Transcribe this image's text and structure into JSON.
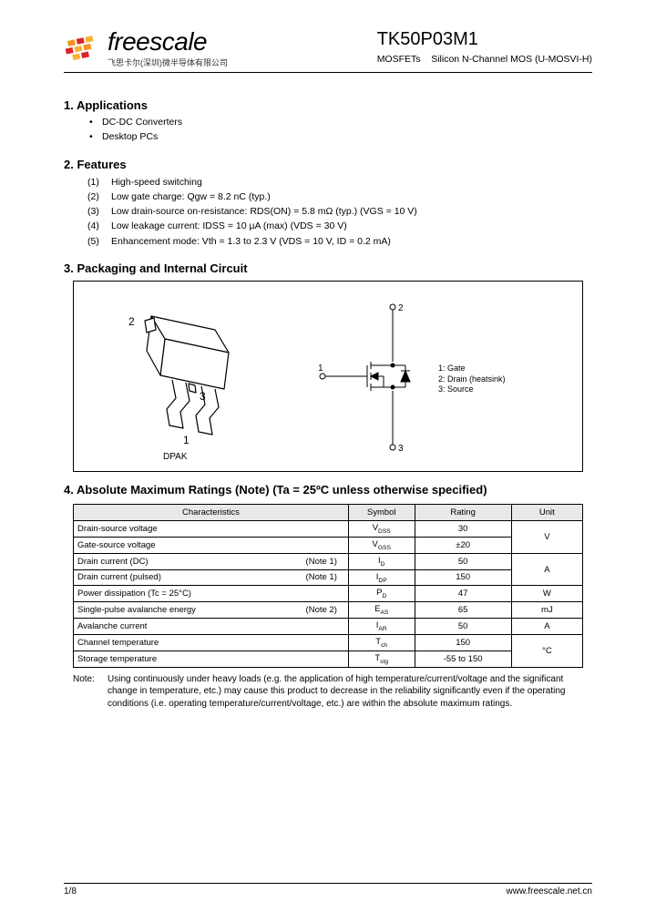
{
  "header": {
    "brand": "freescale",
    "brand_sub": "飞思卡尔(深圳)微半导体有限公司",
    "part_number": "TK50P03M1",
    "part_desc1": "MOSFETs",
    "part_desc2": "Silicon N-Channel MOS (U-MOSVI-H)",
    "logo_colors": {
      "orange": "#f7941e",
      "red": "#d9252a",
      "yellow": "#f9b233"
    }
  },
  "sections": {
    "s1_title": "1.  Applications",
    "s1_items": [
      "DC-DC Converters",
      "Desktop PCs"
    ],
    "s2_title": "2.  Features",
    "s2_items": [
      "High-speed switching",
      "Low gate charge: Qgw = 8.2 nC (typ.)",
      "Low drain-source on-resistance: RDS(ON) = 5.8 mΩ (typ.) (VGS = 10 V)",
      "Low leakage current: IDSS = 10 µA (max) (VDS = 30 V)",
      "Enhancement mode: Vth = 1.3 to 2.3 V (VDS = 10 V, ID = 0.2 mA)"
    ],
    "s3_title": "3.  Packaging and Internal Circuit",
    "s4_title": "4.  Absolute Maximum Ratings (Note) (Ta = 25ºC unless otherwise specified)"
  },
  "diagram": {
    "pkg_label": "DPAK",
    "pins": {
      "p1": "1",
      "p2": "2",
      "p3": "3"
    },
    "pin_labels": [
      "1: Gate",
      "2: Drain (heatsink)",
      "3: Source"
    ]
  },
  "table": {
    "headers": [
      "Characteristics",
      "Symbol",
      "Rating",
      "Unit"
    ],
    "rows": [
      {
        "char": "Drain-source voltage",
        "note": "",
        "sym": "VDSS",
        "sub": "DSS",
        "rating": "30",
        "unit": "V",
        "unit_span_start": true
      },
      {
        "char": "Gate-source voltage",
        "note": "",
        "sym": "VGSS",
        "sub": "GSS",
        "rating": "±20",
        "unit": ""
      },
      {
        "char": "Drain current (DC)",
        "note": "(Note 1)",
        "sym": "ID",
        "sub": "D",
        "rating": "50",
        "unit": "A",
        "unit_span_start": true
      },
      {
        "char": "Drain current (pulsed)",
        "note": "(Note 1)",
        "sym": "IDP",
        "sub": "DP",
        "rating": "150",
        "unit": ""
      },
      {
        "char": "Power dissipation                            (Tc = 25°C)",
        "note": "",
        "sym": "PD",
        "sub": "D",
        "rating": "47",
        "unit": "W"
      },
      {
        "char": "Single-pulse avalanche energy",
        "note": "(Note 2)",
        "sym": "EAS",
        "sub": "AS",
        "rating": "65",
        "unit": "mJ"
      },
      {
        "char": "Avalanche current",
        "note": "",
        "sym": "IAR",
        "sub": "AR",
        "rating": "50",
        "unit": "A"
      },
      {
        "char": "Channel temperature",
        "note": "",
        "sym": "Tch",
        "sub": "ch",
        "rating": "150",
        "unit": "°C"
      },
      {
        "char": "Storage temperature",
        "note": "",
        "sym": "Tstg",
        "sub": "stg",
        "rating": "-55 to 150",
        "unit": ""
      }
    ]
  },
  "note": {
    "label": "Note:",
    "text": "Using continuously under heavy loads (e.g. the application of high temperature/current/voltage and the significant change in temperature, etc.) may cause this product to decrease in the reliability significantly even if the operating conditions (i.e. operating temperature/current/voltage, etc.) are within the absolute maximum ratings."
  },
  "footer": {
    "page": "1/8",
    "url": "www.freescale.net.cn"
  }
}
